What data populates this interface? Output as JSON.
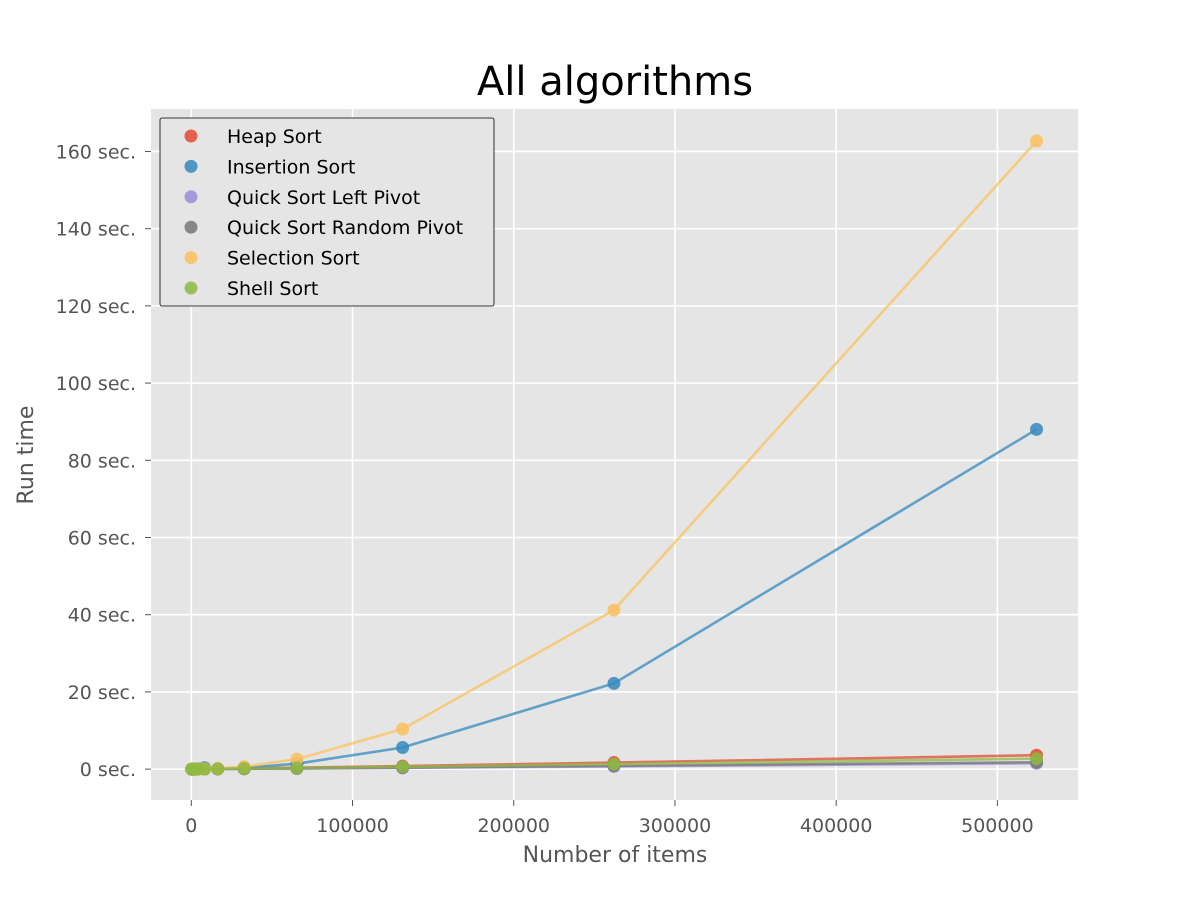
{
  "chart_data": {
    "type": "line",
    "title": "All algorithms",
    "xlabel": "Number of items",
    "ylabel": "Run time",
    "xlim": [
      -25000,
      550000
    ],
    "ylim": [
      -8,
      171
    ],
    "grid": true,
    "legend_position": "top-left",
    "x_ticks": [
      0,
      100000,
      200000,
      300000,
      400000,
      500000
    ],
    "x_tick_labels": [
      "0",
      "100000",
      "200000",
      "300000",
      "400000",
      "500000"
    ],
    "y_ticks": [
      0,
      20,
      40,
      60,
      80,
      100,
      120,
      140,
      160
    ],
    "y_tick_labels": [
      "0 sec.",
      "20 sec.",
      "40 sec.",
      "60 sec.",
      "80 sec.",
      "100 sec.",
      "120 sec.",
      "140 sec.",
      "160 sec."
    ],
    "x": [
      256,
      512,
      1024,
      2048,
      4096,
      8192,
      16384,
      32768,
      65536,
      131072,
      262144,
      524288
    ],
    "series": [
      {
        "name": "Heap Sort",
        "color": "#E24A33",
        "values": [
          0.001,
          0.002,
          0.004,
          0.008,
          0.017,
          0.036,
          0.08,
          0.17,
          0.36,
          0.78,
          1.7,
          3.6
        ]
      },
      {
        "name": "Insertion Sort",
        "color": "#348ABD",
        "values": [
          0.003,
          0.005,
          0.013,
          0.03,
          0.09,
          0.35,
          0.09,
          0.35,
          1.4,
          5.6,
          22.2,
          88.0
        ]
      },
      {
        "name": "Quick Sort Left Pivot",
        "color": "#988ED5",
        "values": [
          0.0005,
          0.001,
          0.002,
          0.004,
          0.008,
          0.017,
          0.036,
          0.075,
          0.16,
          0.33,
          0.7,
          1.5
        ]
      },
      {
        "name": "Quick Sort Random Pivot",
        "color": "#777777",
        "values": [
          0.0006,
          0.0012,
          0.0025,
          0.005,
          0.01,
          0.02,
          0.043,
          0.09,
          0.19,
          0.4,
          0.85,
          1.8
        ]
      },
      {
        "name": "Selection Sort",
        "color": "#FBC15E",
        "values": [
          0.006,
          0.01,
          0.025,
          0.04,
          0.06,
          0.1,
          0.18,
          0.65,
          2.6,
          10.4,
          41.2,
          162.7
        ]
      },
      {
        "name": "Shell Sort",
        "color": "#8EBA42",
        "values": [
          0.0006,
          0.0013,
          0.003,
          0.006,
          0.013,
          0.028,
          0.06,
          0.13,
          0.28,
          0.6,
          1.3,
          2.7
        ]
      }
    ]
  }
}
